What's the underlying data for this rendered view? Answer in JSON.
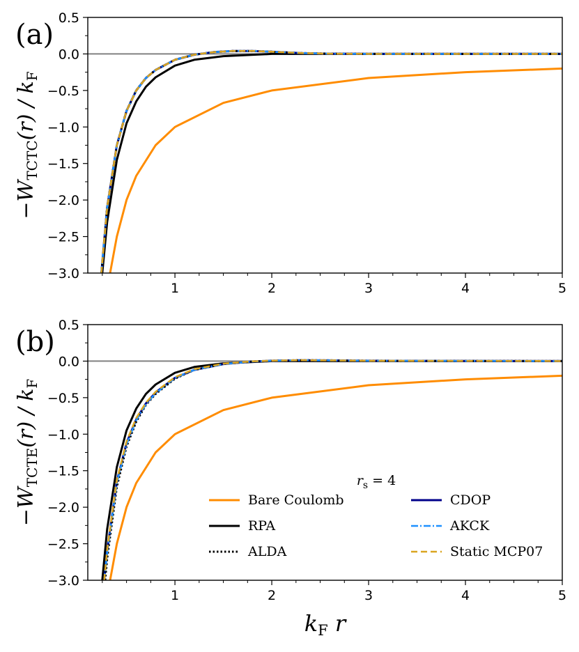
{
  "chart_data": [
    {
      "type": "line",
      "panel_label": "(a)",
      "ylabel": "−W_TCTC(r) / k_F",
      "ylabel_main": "−W",
      "ylabel_sub": "TCTC",
      "ylabel_tail": "(r) / k",
      "ylabel_tail_sub": "F",
      "xlabel": "",
      "xlim": [
        0.1,
        5
      ],
      "ylim": [
        -3.0,
        0.5
      ],
      "xticks": [
        "1",
        "2",
        "3",
        "4",
        "5"
      ],
      "yticks": [
        "0.5",
        "0.0",
        "−0.5",
        "−1.0",
        "−1.5",
        "−2.0",
        "−2.5",
        "−3.0"
      ],
      "series": [
        {
          "name": "Bare Coulomb",
          "color": "#ff8c00",
          "x": [
            0.33,
            0.4,
            0.5,
            0.6,
            0.8,
            1.0,
            1.5,
            2.0,
            3.0,
            4.0,
            5.0
          ],
          "values": [
            -3.0,
            -2.5,
            -2.0,
            -1.67,
            -1.25,
            -1.0,
            -0.67,
            -0.5,
            -0.33,
            -0.25,
            -0.2
          ]
        },
        {
          "name": "RPA",
          "color": "#000000",
          "x": [
            0.25,
            0.3,
            0.4,
            0.5,
            0.6,
            0.7,
            0.8,
            1.0,
            1.2,
            1.5,
            2.0,
            3.0,
            5.0
          ],
          "values": [
            -3.0,
            -2.3,
            -1.45,
            -0.95,
            -0.65,
            -0.45,
            -0.32,
            -0.16,
            -0.08,
            -0.03,
            0.0,
            0.0,
            0.0
          ]
        },
        {
          "name": "CDOP",
          "color": "#00008b",
          "x": [
            0.24,
            0.3,
            0.4,
            0.5,
            0.6,
            0.7,
            0.8,
            1.0,
            1.2,
            1.4,
            1.6,
            1.8,
            2.0,
            2.3,
            2.6,
            3.0,
            5.0
          ],
          "values": [
            -3.0,
            -2.1,
            -1.25,
            -0.78,
            -0.5,
            -0.33,
            -0.22,
            -0.08,
            -0.01,
            0.025,
            0.04,
            0.04,
            0.03,
            0.012,
            0.003,
            0.0,
            0.0
          ]
        },
        {
          "name": "ALDA",
          "color": "#000000",
          "x": [
            0.24,
            0.3,
            0.4,
            0.5,
            0.6,
            0.7,
            0.8,
            1.0,
            1.2,
            1.4,
            1.6,
            1.8,
            2.0,
            2.3,
            2.6,
            3.0,
            5.0
          ],
          "values": [
            -3.0,
            -2.1,
            -1.25,
            -0.78,
            -0.5,
            -0.33,
            -0.22,
            -0.08,
            -0.01,
            0.025,
            0.04,
            0.04,
            0.03,
            0.012,
            0.003,
            0.0,
            0.0
          ]
        },
        {
          "name": "AKCK",
          "color": "#1e90ff",
          "x": [
            0.24,
            0.3,
            0.4,
            0.5,
            0.6,
            0.7,
            0.8,
            1.0,
            1.2,
            1.4,
            1.6,
            1.8,
            2.0,
            2.3,
            2.6,
            3.0,
            5.0
          ],
          "values": [
            -3.0,
            -2.1,
            -1.25,
            -0.78,
            -0.5,
            -0.33,
            -0.22,
            -0.08,
            -0.01,
            0.025,
            0.04,
            0.04,
            0.03,
            0.012,
            0.003,
            0.0,
            0.0
          ]
        },
        {
          "name": "Static MCP07",
          "color": "#daa520",
          "x": [
            0.24,
            0.3,
            0.4,
            0.5,
            0.6,
            0.7,
            0.8,
            1.0,
            1.2,
            1.4,
            1.6,
            1.8,
            2.0,
            2.3,
            2.6,
            3.0,
            5.0
          ],
          "values": [
            -3.0,
            -2.1,
            -1.25,
            -0.78,
            -0.5,
            -0.33,
            -0.22,
            -0.08,
            -0.01,
            0.025,
            0.04,
            0.04,
            0.03,
            0.012,
            0.003,
            0.0,
            0.0
          ]
        }
      ]
    },
    {
      "type": "line",
      "panel_label": "(b)",
      "ylabel": "−W_TCTE(r) / k_F",
      "ylabel_main": "−W",
      "ylabel_sub": "TCTE",
      "ylabel_tail": "(r) / k",
      "ylabel_tail_sub": "F",
      "xlabel": "k_F r",
      "xlabel_main": "k",
      "xlabel_sub": "F",
      "xlabel_tail": " r",
      "xlim": [
        0.1,
        5
      ],
      "ylim": [
        -3.0,
        0.5
      ],
      "xticks": [
        "1",
        "2",
        "3",
        "4",
        "5"
      ],
      "yticks": [
        "0.5",
        "0.0",
        "−0.5",
        "−1.0",
        "−1.5",
        "−2.0",
        "−2.5",
        "−3.0"
      ],
      "legend_title": "r_s = 4",
      "legend_title_main": "r",
      "legend_title_sub": "s",
      "legend_title_tail": " = 4",
      "legend_location": "lower-right",
      "series": [
        {
          "name": "Bare Coulomb",
          "color": "#ff8c00",
          "x": [
            0.33,
            0.4,
            0.5,
            0.6,
            0.8,
            1.0,
            1.5,
            2.0,
            3.0,
            4.0,
            5.0
          ],
          "values": [
            -3.0,
            -2.5,
            -2.0,
            -1.67,
            -1.25,
            -1.0,
            -0.67,
            -0.5,
            -0.33,
            -0.25,
            -0.2
          ]
        },
        {
          "name": "RPA",
          "color": "#000000",
          "x": [
            0.25,
            0.3,
            0.4,
            0.5,
            0.6,
            0.7,
            0.8,
            1.0,
            1.2,
            1.5,
            2.0,
            3.0,
            5.0
          ],
          "values": [
            -3.0,
            -2.3,
            -1.45,
            -0.95,
            -0.65,
            -0.45,
            -0.32,
            -0.16,
            -0.08,
            -0.03,
            0.0,
            0.0,
            0.0
          ]
        },
        {
          "name": "CDOP",
          "color": "#00008b",
          "x": [
            0.27,
            0.3,
            0.4,
            0.5,
            0.6,
            0.7,
            0.8,
            1.0,
            1.2,
            1.5,
            1.8,
            2.0,
            2.3,
            2.6,
            3.0,
            5.0
          ],
          "values": [
            -3.0,
            -2.6,
            -1.65,
            -1.12,
            -0.8,
            -0.58,
            -0.43,
            -0.23,
            -0.12,
            -0.04,
            -0.005,
            0.005,
            0.012,
            0.01,
            0.005,
            0.0
          ]
        },
        {
          "name": "ALDA",
          "color": "#000000",
          "x": [
            0.28,
            0.3,
            0.4,
            0.5,
            0.6,
            0.7,
            0.8,
            1.0,
            1.2,
            1.5,
            1.8,
            2.0,
            2.3,
            2.6,
            3.0,
            5.0
          ],
          "values": [
            -3.0,
            -2.7,
            -1.72,
            -1.17,
            -0.83,
            -0.6,
            -0.45,
            -0.24,
            -0.12,
            -0.04,
            -0.005,
            0.005,
            0.012,
            0.01,
            0.005,
            0.0
          ]
        },
        {
          "name": "AKCK",
          "color": "#1e90ff",
          "x": [
            0.27,
            0.3,
            0.4,
            0.5,
            0.6,
            0.7,
            0.8,
            1.0,
            1.2,
            1.5,
            1.8,
            2.0,
            2.3,
            2.6,
            3.0,
            5.0
          ],
          "values": [
            -3.0,
            -2.62,
            -1.67,
            -1.14,
            -0.81,
            -0.59,
            -0.44,
            -0.23,
            -0.12,
            -0.04,
            -0.005,
            0.005,
            0.012,
            0.01,
            0.005,
            0.0
          ]
        },
        {
          "name": "Static MCP07",
          "color": "#daa520",
          "x": [
            0.27,
            0.3,
            0.4,
            0.5,
            0.6,
            0.7,
            0.8,
            1.0,
            1.2,
            1.5,
            1.8,
            2.0,
            2.3,
            2.6,
            3.0,
            5.0
          ],
          "values": [
            -3.0,
            -2.58,
            -1.63,
            -1.1,
            -0.78,
            -0.57,
            -0.42,
            -0.22,
            -0.11,
            -0.035,
            -0.003,
            0.006,
            0.013,
            0.01,
            0.005,
            0.0
          ]
        }
      ]
    }
  ]
}
